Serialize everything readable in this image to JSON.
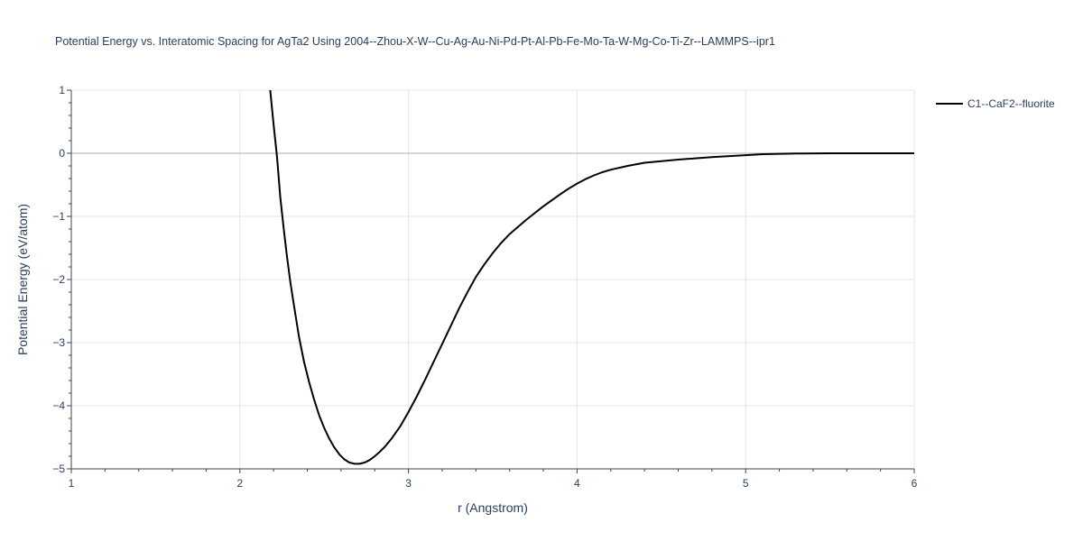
{
  "chart_data": {
    "type": "line",
    "title": "Potential Energy vs. Interatomic Spacing for AgTa2 Using 2004--Zhou-X-W--Cu-Ag-Au-Ni-Pd-Pt-Al-Pb-Fe-Mo-Ta-W-Mg-Co-Ti-Zr--LAMMPS--ipr1",
    "xlabel": "r (Angstrom)",
    "ylabel": "Potential Energy (eV/atom)",
    "xlim": [
      1,
      6
    ],
    "ylim": [
      -5,
      1
    ],
    "xticks": [
      1,
      2,
      3,
      4,
      5,
      6
    ],
    "xtick_labels": [
      "1",
      "2",
      "3",
      "4",
      "5",
      "6"
    ],
    "yticks": [
      1,
      0,
      -1,
      -2,
      -3,
      -4,
      -5
    ],
    "ytick_labels": [
      "1",
      "0",
      "−1",
      "−2",
      "−3",
      "−4",
      "−5"
    ],
    "grid": true,
    "legend_position": "top-right",
    "series": [
      {
        "name": "C1--CaF2--fluorite",
        "color": "#000000",
        "x": [
          2.18,
          2.2,
          2.22,
          2.24,
          2.26,
          2.28,
          2.3,
          2.32,
          2.35,
          2.38,
          2.41,
          2.44,
          2.47,
          2.5,
          2.53,
          2.56,
          2.59,
          2.62,
          2.65,
          2.68,
          2.71,
          2.74,
          2.77,
          2.8,
          2.83,
          2.86,
          2.9,
          2.95,
          3.0,
          3.05,
          3.1,
          3.15,
          3.2,
          3.25,
          3.3,
          3.35,
          3.4,
          3.45,
          3.5,
          3.55,
          3.6,
          3.7,
          3.8,
          3.9,
          3.95,
          4.0,
          4.05,
          4.1,
          4.15,
          4.2,
          4.3,
          4.4,
          4.6,
          4.8,
          5.0,
          5.1,
          5.3,
          5.5,
          6.0
        ],
        "y": [
          1.0,
          0.45,
          -0.05,
          -0.7,
          -1.2,
          -1.65,
          -2.05,
          -2.4,
          -2.9,
          -3.3,
          -3.62,
          -3.9,
          -4.15,
          -4.35,
          -4.52,
          -4.66,
          -4.77,
          -4.85,
          -4.9,
          -4.92,
          -4.92,
          -4.9,
          -4.86,
          -4.8,
          -4.73,
          -4.65,
          -4.52,
          -4.33,
          -4.1,
          -3.85,
          -3.58,
          -3.3,
          -3.02,
          -2.74,
          -2.46,
          -2.2,
          -1.96,
          -1.76,
          -1.58,
          -1.42,
          -1.28,
          -1.05,
          -0.84,
          -0.65,
          -0.56,
          -0.48,
          -0.41,
          -0.35,
          -0.3,
          -0.26,
          -0.2,
          -0.15,
          -0.1,
          -0.06,
          -0.03,
          -0.015,
          -0.005,
          0.0,
          0.0
        ]
      }
    ]
  }
}
